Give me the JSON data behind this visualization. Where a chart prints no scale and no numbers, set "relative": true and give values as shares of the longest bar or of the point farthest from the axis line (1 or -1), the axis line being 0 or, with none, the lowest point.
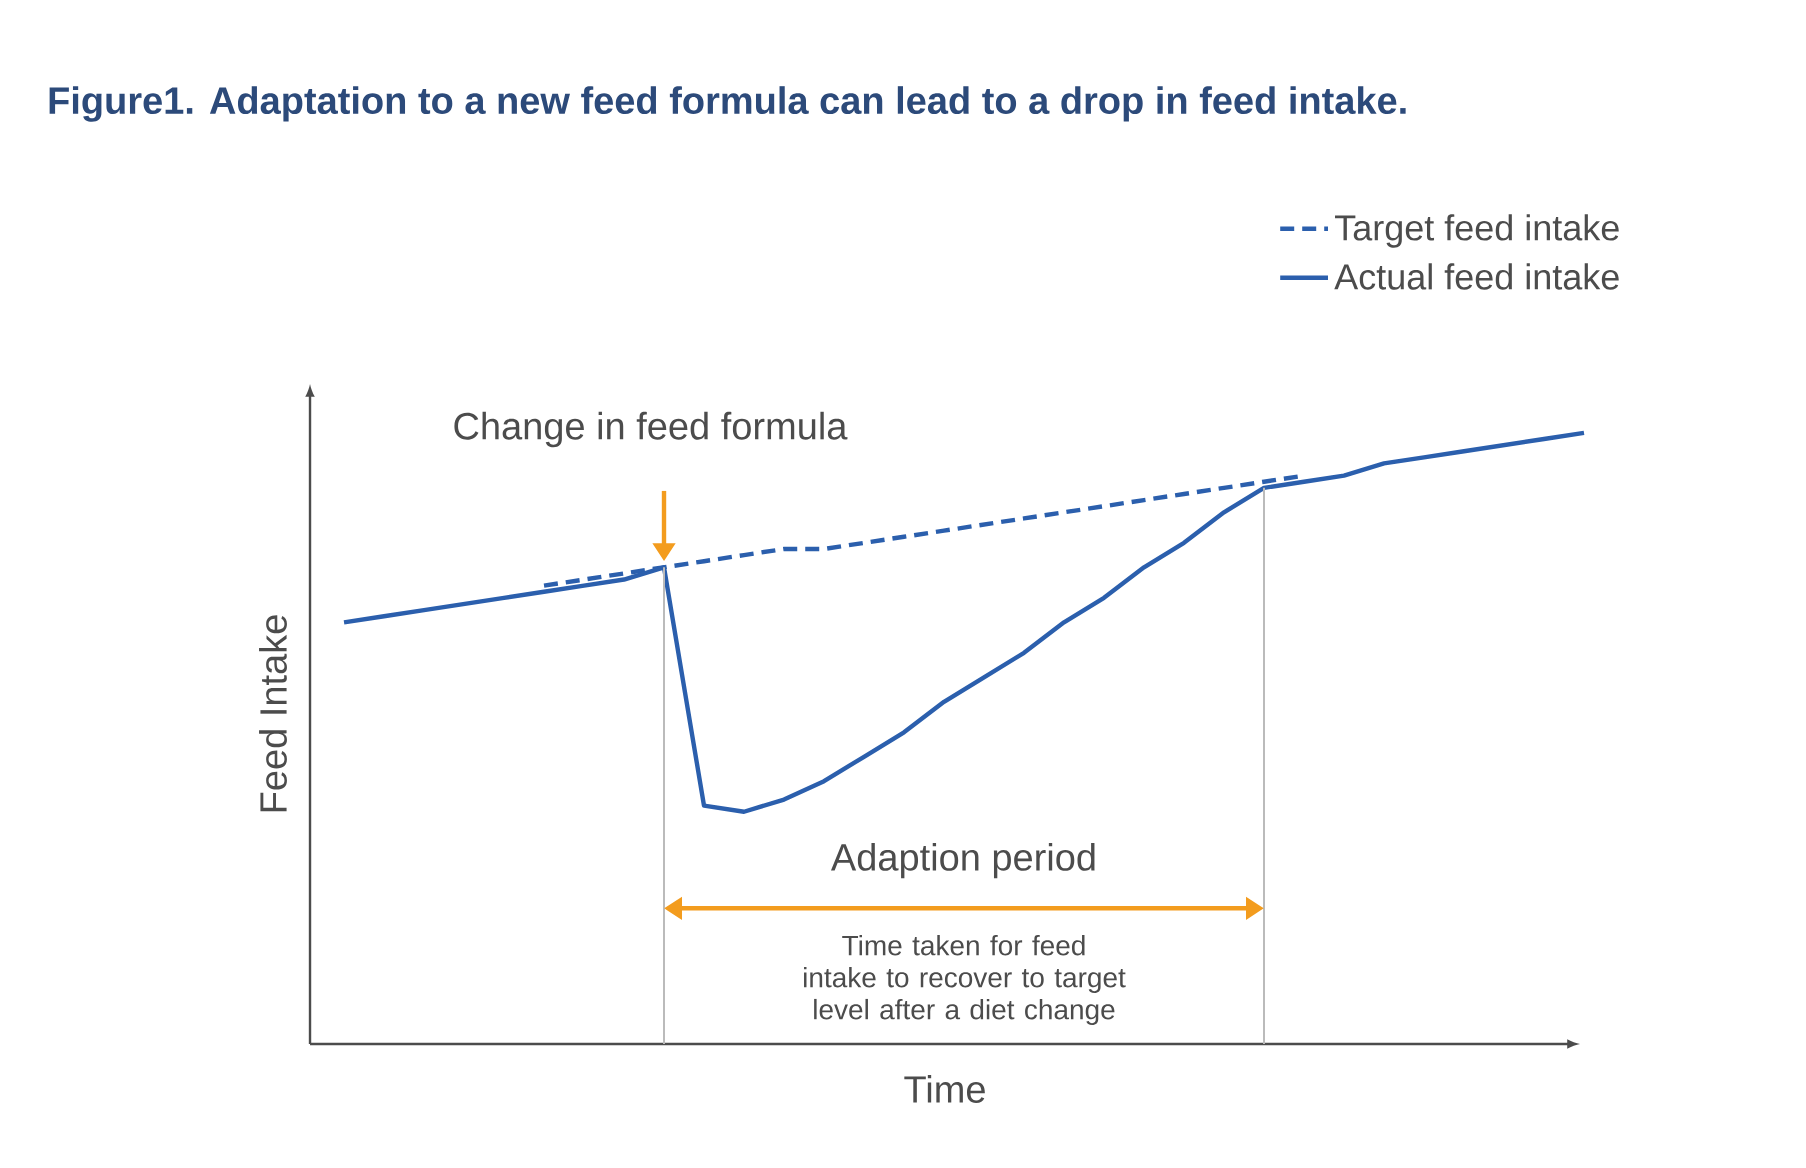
{
  "chart_data": {
    "type": "line",
    "relative": true,
    "title": "Figure1. Adaptation to a new feed formula can lead to a drop in feed intake.",
    "xlabel": "Time",
    "ylabel": "Feed Intake",
    "categories": [
      null,
      null,
      null,
      null,
      null,
      null,
      null,
      null,
      null,
      null,
      null,
      null,
      null,
      null,
      null,
      null,
      null,
      null,
      null,
      null,
      null,
      null,
      null,
      null,
      null,
      null,
      null,
      null,
      null,
      null,
      null,
      null
    ],
    "series": [
      {
        "name": "Target feed intake",
        "color": "#2b5fad",
        "line_style": "dashed",
        "values": [
          null,
          null,
          null,
          null,
          null,
          0.75,
          0.76,
          0.77,
          0.78,
          0.79,
          0.8,
          0.81,
          0.81,
          0.82,
          0.83,
          0.84,
          0.85,
          0.86,
          0.87,
          0.88,
          0.89,
          0.9,
          0.91,
          0.92,
          0.93,
          null,
          null,
          null,
          null,
          null,
          null,
          null
        ]
      },
      {
        "name": "Actual feed intake",
        "color": "#2b5fad",
        "line_style": "solid",
        "values": [
          0.69,
          0.7,
          0.71,
          0.72,
          0.73,
          0.74,
          0.75,
          0.76,
          0.78,
          0.39,
          0.38,
          0.4,
          0.43,
          0.47,
          0.51,
          0.56,
          0.6,
          0.64,
          0.69,
          0.73,
          0.78,
          0.82,
          0.87,
          0.91,
          0.92,
          0.93,
          0.95,
          0.96,
          0.97,
          0.98,
          0.99,
          1.0
        ]
      }
    ],
    "annotations": [
      "Change in feed formula",
      "Adaption period",
      "Time taken for feed intake to recover to target level after a diet change"
    ],
    "legend": "top right",
    "marker": "none"
  }
}
